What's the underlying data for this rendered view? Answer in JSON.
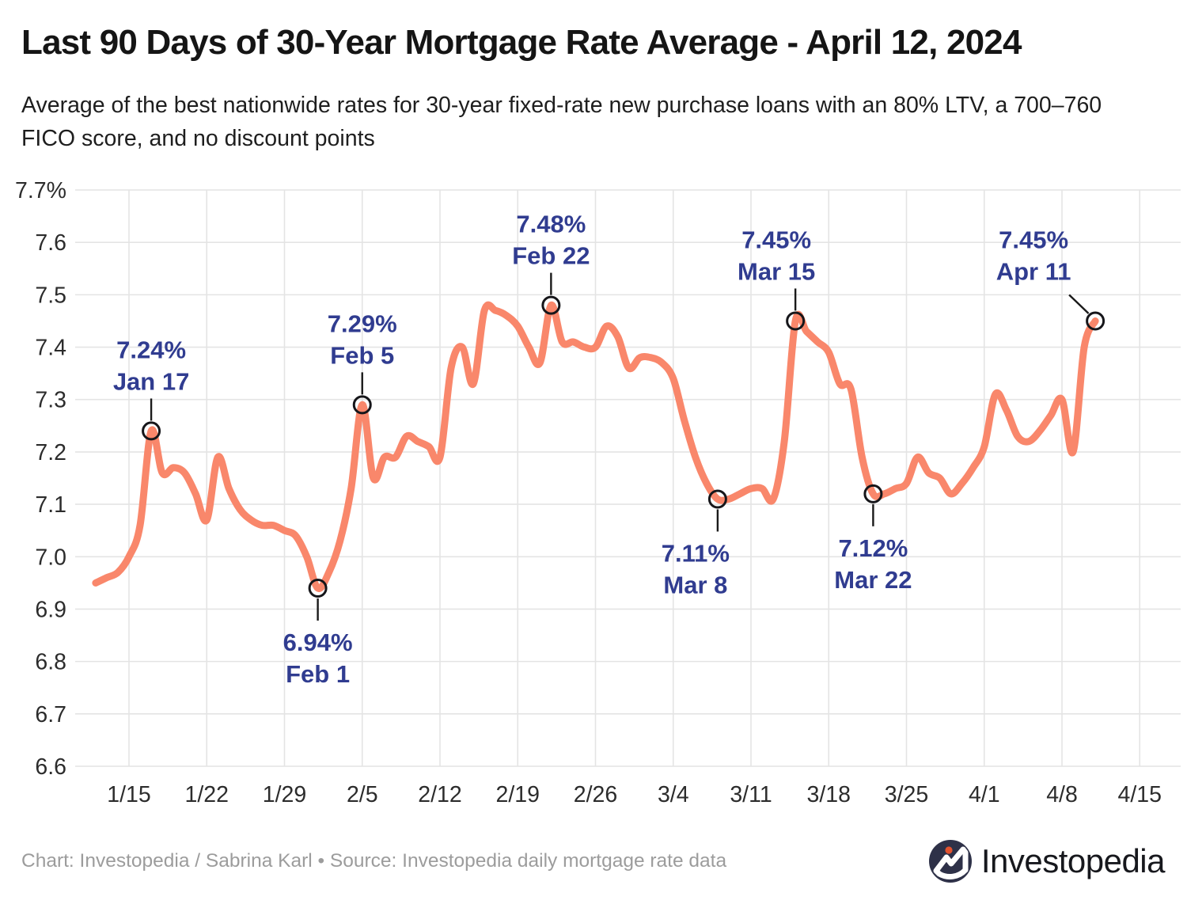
{
  "page": {
    "title": "Last 90 Days of 30-Year Mortgage Rate Average - April 12, 2024",
    "subtitle": "Average of the best nationwide rates for 30-year fixed-rate new purchase loans with an 80% LTV, a 700–760 FICO score, and no discount points",
    "footer_credit": "Chart: Investopedia / Sabrina Karl • Source: Investopedia daily mortgage rate data",
    "logo_text": "Investopedia"
  },
  "chart_data": {
    "type": "line",
    "title": "Last 90 Days of 30-Year Mortgage Rate Average - April 12, 2024",
    "subtitle": "Average of the best nationwide rates for 30-year fixed-rate new purchase loans with an 80% LTV, a 700–760 FICO score, and no discount points",
    "unit": "percent",
    "ylim": [
      6.6,
      7.7
    ],
    "grid": true,
    "legend": "none",
    "line_color": "#f9876b",
    "annotation_color": "#303c90",
    "grid_color": "#e4e4e4",
    "marker_stroke_color": "#16161a",
    "tick_label_color": "#2c2c2c",
    "y_tick_labels": [
      "7.7%",
      "7.6",
      "7.5",
      "7.4",
      "7.3",
      "7.2",
      "7.1",
      "7.0",
      "6.9",
      "6.8",
      "6.7",
      "6.6"
    ],
    "y_tick_values": [
      7.7,
      7.6,
      7.5,
      7.4,
      7.3,
      7.2,
      7.1,
      7.0,
      6.9,
      6.8,
      6.7,
      6.6
    ],
    "x_tick_labels": [
      "1/15",
      "1/22",
      "1/29",
      "2/5",
      "2/12",
      "2/19",
      "2/26",
      "3/4",
      "3/11",
      "3/18",
      "3/25",
      "4/1",
      "4/8",
      "4/15"
    ],
    "x_dates": [
      "1/12",
      "1/13",
      "1/14",
      "1/15",
      "1/16",
      "1/17",
      "1/18",
      "1/19",
      "1/20",
      "1/21",
      "1/22",
      "1/23",
      "1/24",
      "1/25",
      "1/26",
      "1/27",
      "1/28",
      "1/29",
      "1/30",
      "1/31",
      "2/1",
      "2/2",
      "2/3",
      "2/4",
      "2/5",
      "2/6",
      "2/7",
      "2/8",
      "2/9",
      "2/10",
      "2/11",
      "2/12",
      "2/13",
      "2/14",
      "2/15",
      "2/16",
      "2/17",
      "2/18",
      "2/19",
      "2/20",
      "2/21",
      "2/22",
      "2/23",
      "2/24",
      "2/25",
      "2/26",
      "2/27",
      "2/28",
      "2/29",
      "3/1",
      "3/2",
      "3/3",
      "3/4",
      "3/5",
      "3/6",
      "3/7",
      "3/8",
      "3/9",
      "3/10",
      "3/11",
      "3/12",
      "3/13",
      "3/14",
      "3/15",
      "3/16",
      "3/17",
      "3/18",
      "3/19",
      "3/20",
      "3/21",
      "3/22",
      "3/23",
      "3/24",
      "3/25",
      "3/26",
      "3/27",
      "3/28",
      "3/29",
      "3/30",
      "3/31",
      "4/1",
      "4/2",
      "4/3",
      "4/4",
      "4/5",
      "4/6",
      "4/7",
      "4/8",
      "4/9",
      "4/10",
      "4/11"
    ],
    "values": [
      6.95,
      6.96,
      6.97,
      7.0,
      7.06,
      7.24,
      7.16,
      7.17,
      7.16,
      7.12,
      7.07,
      7.19,
      7.13,
      7.09,
      7.07,
      7.06,
      7.06,
      7.05,
      7.04,
      7.0,
      6.94,
      6.97,
      7.03,
      7.13,
      7.29,
      7.15,
      7.19,
      7.19,
      7.23,
      7.22,
      7.21,
      7.19,
      7.36,
      7.4,
      7.33,
      7.47,
      7.47,
      7.46,
      7.44,
      7.4,
      7.37,
      7.48,
      7.41,
      7.41,
      7.4,
      7.4,
      7.44,
      7.42,
      7.36,
      7.38,
      7.38,
      7.37,
      7.34,
      7.26,
      7.19,
      7.14,
      7.11,
      7.11,
      7.12,
      7.13,
      7.13,
      7.11,
      7.22,
      7.45,
      7.43,
      7.41,
      7.39,
      7.33,
      7.32,
      7.19,
      7.12,
      7.12,
      7.13,
      7.14,
      7.19,
      7.16,
      7.15,
      7.12,
      7.14,
      7.17,
      7.21,
      7.31,
      7.28,
      7.23,
      7.22,
      7.24,
      7.27,
      7.3,
      7.2,
      7.4,
      7.45
    ],
    "annotations": [
      {
        "date": "1/17",
        "rate_label": "7.24%",
        "date_label": "Jan 17",
        "position": "above",
        "dx": 0
      },
      {
        "date": "2/1",
        "rate_label": "6.94%",
        "date_label": "Feb 1",
        "position": "below",
        "dx": 0
      },
      {
        "date": "2/5",
        "rate_label": "7.29%",
        "date_label": "Feb 5",
        "position": "above",
        "dx": 0
      },
      {
        "date": "2/22",
        "rate_label": "7.48%",
        "date_label": "Feb 22",
        "position": "above",
        "dx": 0
      },
      {
        "date": "3/8",
        "rate_label": "7.11%",
        "date_label": "Mar 8",
        "position": "below",
        "dx": -28
      },
      {
        "date": "3/15",
        "rate_label": "7.45%",
        "date_label": "Mar 15",
        "position": "above",
        "dx": -24
      },
      {
        "date": "3/22",
        "rate_label": "7.12%",
        "date_label": "Mar 22",
        "position": "below",
        "dx": 0
      },
      {
        "date": "4/11",
        "rate_label": "7.45%",
        "date_label": "Apr 11",
        "position": "above-left",
        "dx": -78
      }
    ]
  }
}
